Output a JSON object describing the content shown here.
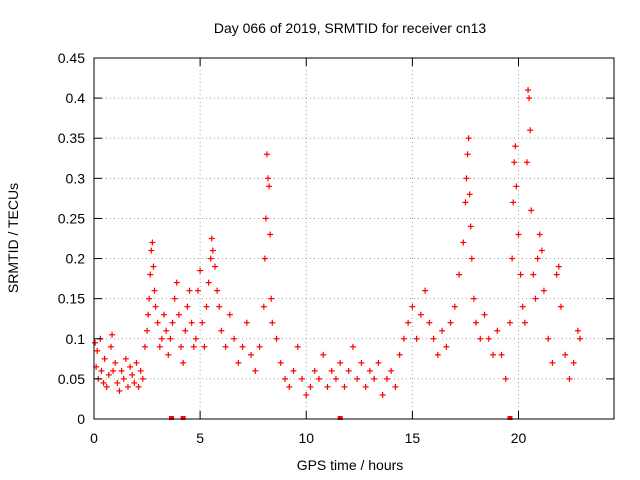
{
  "chart_data": {
    "type": "scatter",
    "title": "Day 066 of 2019, SRMTID for receiver cn13",
    "xlabel": "GPS time / hours",
    "ylabel": "SRMTID / TECUs",
    "xlim": [
      0,
      24.5
    ],
    "ylim": [
      0,
      0.45
    ],
    "xticks": [
      0,
      5,
      10,
      15,
      20
    ],
    "yticks": [
      0,
      0.05,
      0.1,
      0.15,
      0.2,
      0.25,
      0.3,
      0.35,
      0.4,
      0.45
    ],
    "grid": true,
    "marker": "+",
    "color": "#ff0000",
    "series": [
      {
        "name": "SRMTID",
        "points": [
          [
            0.05,
            0.095
          ],
          [
            0.1,
            0.065
          ],
          [
            0.15,
            0.085
          ],
          [
            0.2,
            0.05
          ],
          [
            0.3,
            0.1
          ],
          [
            0.35,
            0.06
          ],
          [
            0.45,
            0.045
          ],
          [
            0.5,
            0.075
          ],
          [
            0.6,
            0.04
          ],
          [
            0.7,
            0.055
          ],
          [
            0.8,
            0.09
          ],
          [
            0.85,
            0.105
          ],
          [
            0.9,
            0.06
          ],
          [
            1.0,
            0.07
          ],
          [
            1.1,
            0.045
          ],
          [
            1.2,
            0.035
          ],
          [
            1.3,
            0.06
          ],
          [
            1.4,
            0.05
          ],
          [
            1.5,
            0.075
          ],
          [
            1.6,
            0.04
          ],
          [
            1.7,
            0.065
          ],
          [
            1.8,
            0.055
          ],
          [
            1.9,
            0.045
          ],
          [
            2.0,
            0.07
          ],
          [
            2.1,
            0.04
          ],
          [
            2.2,
            0.06
          ],
          [
            2.3,
            0.05
          ],
          [
            2.4,
            0.09
          ],
          [
            2.5,
            0.11
          ],
          [
            2.55,
            0.13
          ],
          [
            2.6,
            0.15
          ],
          [
            2.65,
            0.18
          ],
          [
            2.7,
            0.21
          ],
          [
            2.75,
            0.22
          ],
          [
            2.8,
            0.19
          ],
          [
            2.85,
            0.16
          ],
          [
            2.9,
            0.14
          ],
          [
            3.0,
            0.12
          ],
          [
            3.1,
            0.09
          ],
          [
            3.2,
            0.1
          ],
          [
            3.3,
            0.13
          ],
          [
            3.4,
            0.11
          ],
          [
            3.5,
            0.08
          ],
          [
            3.6,
            0.1
          ],
          [
            3.7,
            0.12
          ],
          [
            3.8,
            0.15
          ],
          [
            3.9,
            0.17
          ],
          [
            4.0,
            0.13
          ],
          [
            4.1,
            0.09
          ],
          [
            4.2,
            0.07
          ],
          [
            4.3,
            0.11
          ],
          [
            4.4,
            0.14
          ],
          [
            4.5,
            0.16
          ],
          [
            4.6,
            0.12
          ],
          [
            4.7,
            0.09
          ],
          [
            4.8,
            0.1
          ],
          [
            4.9,
            0.16
          ],
          [
            5.0,
            0.185
          ],
          [
            5.1,
            0.12
          ],
          [
            5.2,
            0.09
          ],
          [
            5.3,
            0.14
          ],
          [
            5.4,
            0.17
          ],
          [
            5.5,
            0.2
          ],
          [
            5.55,
            0.225
          ],
          [
            5.6,
            0.21
          ],
          [
            5.7,
            0.19
          ],
          [
            5.8,
            0.16
          ],
          [
            5.9,
            0.14
          ],
          [
            6.0,
            0.11
          ],
          [
            6.2,
            0.09
          ],
          [
            6.4,
            0.13
          ],
          [
            6.6,
            0.1
          ],
          [
            6.8,
            0.07
          ],
          [
            7.0,
            0.09
          ],
          [
            7.2,
            0.12
          ],
          [
            7.4,
            0.08
          ],
          [
            7.6,
            0.06
          ],
          [
            7.8,
            0.09
          ],
          [
            8.0,
            0.14
          ],
          [
            8.05,
            0.2
          ],
          [
            8.1,
            0.25
          ],
          [
            8.15,
            0.33
          ],
          [
            8.2,
            0.3
          ],
          [
            8.25,
            0.29
          ],
          [
            8.3,
            0.23
          ],
          [
            8.35,
            0.15
          ],
          [
            8.4,
            0.12
          ],
          [
            8.6,
            0.1
          ],
          [
            8.8,
            0.07
          ],
          [
            9.0,
            0.05
          ],
          [
            9.2,
            0.04
          ],
          [
            9.4,
            0.06
          ],
          [
            9.6,
            0.09
          ],
          [
            9.8,
            0.05
          ],
          [
            10.0,
            0.03
          ],
          [
            10.2,
            0.04
          ],
          [
            10.4,
            0.06
          ],
          [
            10.6,
            0.05
          ],
          [
            10.8,
            0.08
          ],
          [
            11.0,
            0.04
          ],
          [
            11.2,
            0.06
          ],
          [
            11.4,
            0.05
          ],
          [
            11.6,
            0.07
          ],
          [
            11.8,
            0.04
          ],
          [
            12.0,
            0.06
          ],
          [
            12.2,
            0.09
          ],
          [
            12.4,
            0.05
          ],
          [
            12.6,
            0.07
          ],
          [
            12.8,
            0.04
          ],
          [
            13.0,
            0.06
          ],
          [
            13.2,
            0.05
          ],
          [
            13.4,
            0.07
          ],
          [
            13.6,
            0.03
          ],
          [
            13.8,
            0.05
          ],
          [
            14.0,
            0.06
          ],
          [
            14.2,
            0.04
          ],
          [
            14.4,
            0.08
          ],
          [
            14.6,
            0.1
          ],
          [
            14.8,
            0.12
          ],
          [
            15.0,
            0.14
          ],
          [
            15.2,
            0.1
          ],
          [
            15.4,
            0.13
          ],
          [
            15.6,
            0.16
          ],
          [
            15.8,
            0.12
          ],
          [
            16.0,
            0.1
          ],
          [
            16.2,
            0.08
          ],
          [
            16.4,
            0.11
          ],
          [
            16.6,
            0.09
          ],
          [
            16.8,
            0.12
          ],
          [
            17.0,
            0.14
          ],
          [
            17.2,
            0.18
          ],
          [
            17.4,
            0.22
          ],
          [
            17.5,
            0.27
          ],
          [
            17.55,
            0.3
          ],
          [
            17.6,
            0.33
          ],
          [
            17.65,
            0.35
          ],
          [
            17.7,
            0.28
          ],
          [
            17.75,
            0.24
          ],
          [
            17.8,
            0.2
          ],
          [
            17.9,
            0.15
          ],
          [
            18.0,
            0.12
          ],
          [
            18.2,
            0.1
          ],
          [
            18.4,
            0.13
          ],
          [
            18.6,
            0.1
          ],
          [
            18.8,
            0.08
          ],
          [
            19.0,
            0.11
          ],
          [
            19.2,
            0.08
          ],
          [
            19.4,
            0.05
          ],
          [
            19.6,
            0.12
          ],
          [
            19.7,
            0.2
          ],
          [
            19.75,
            0.27
          ],
          [
            19.8,
            0.32
          ],
          [
            19.85,
            0.34
          ],
          [
            19.9,
            0.29
          ],
          [
            20.0,
            0.23
          ],
          [
            20.1,
            0.18
          ],
          [
            20.2,
            0.14
          ],
          [
            20.3,
            0.12
          ],
          [
            20.4,
            0.32
          ],
          [
            20.45,
            0.41
          ],
          [
            20.5,
            0.4
          ],
          [
            20.55,
            0.36
          ],
          [
            20.6,
            0.26
          ],
          [
            20.7,
            0.18
          ],
          [
            20.8,
            0.15
          ],
          [
            20.9,
            0.2
          ],
          [
            21.0,
            0.23
          ],
          [
            21.1,
            0.21
          ],
          [
            21.2,
            0.16
          ],
          [
            21.4,
            0.1
          ],
          [
            21.6,
            0.07
          ],
          [
            21.8,
            0.18
          ],
          [
            21.9,
            0.19
          ],
          [
            22.0,
            0.14
          ],
          [
            22.2,
            0.08
          ],
          [
            22.4,
            0.05
          ],
          [
            22.6,
            0.07
          ],
          [
            22.8,
            0.11
          ],
          [
            22.9,
            0.1
          ]
        ]
      }
    ],
    "baseline_markers": [
      3.65,
      4.2,
      11.6,
      19.6
    ]
  }
}
